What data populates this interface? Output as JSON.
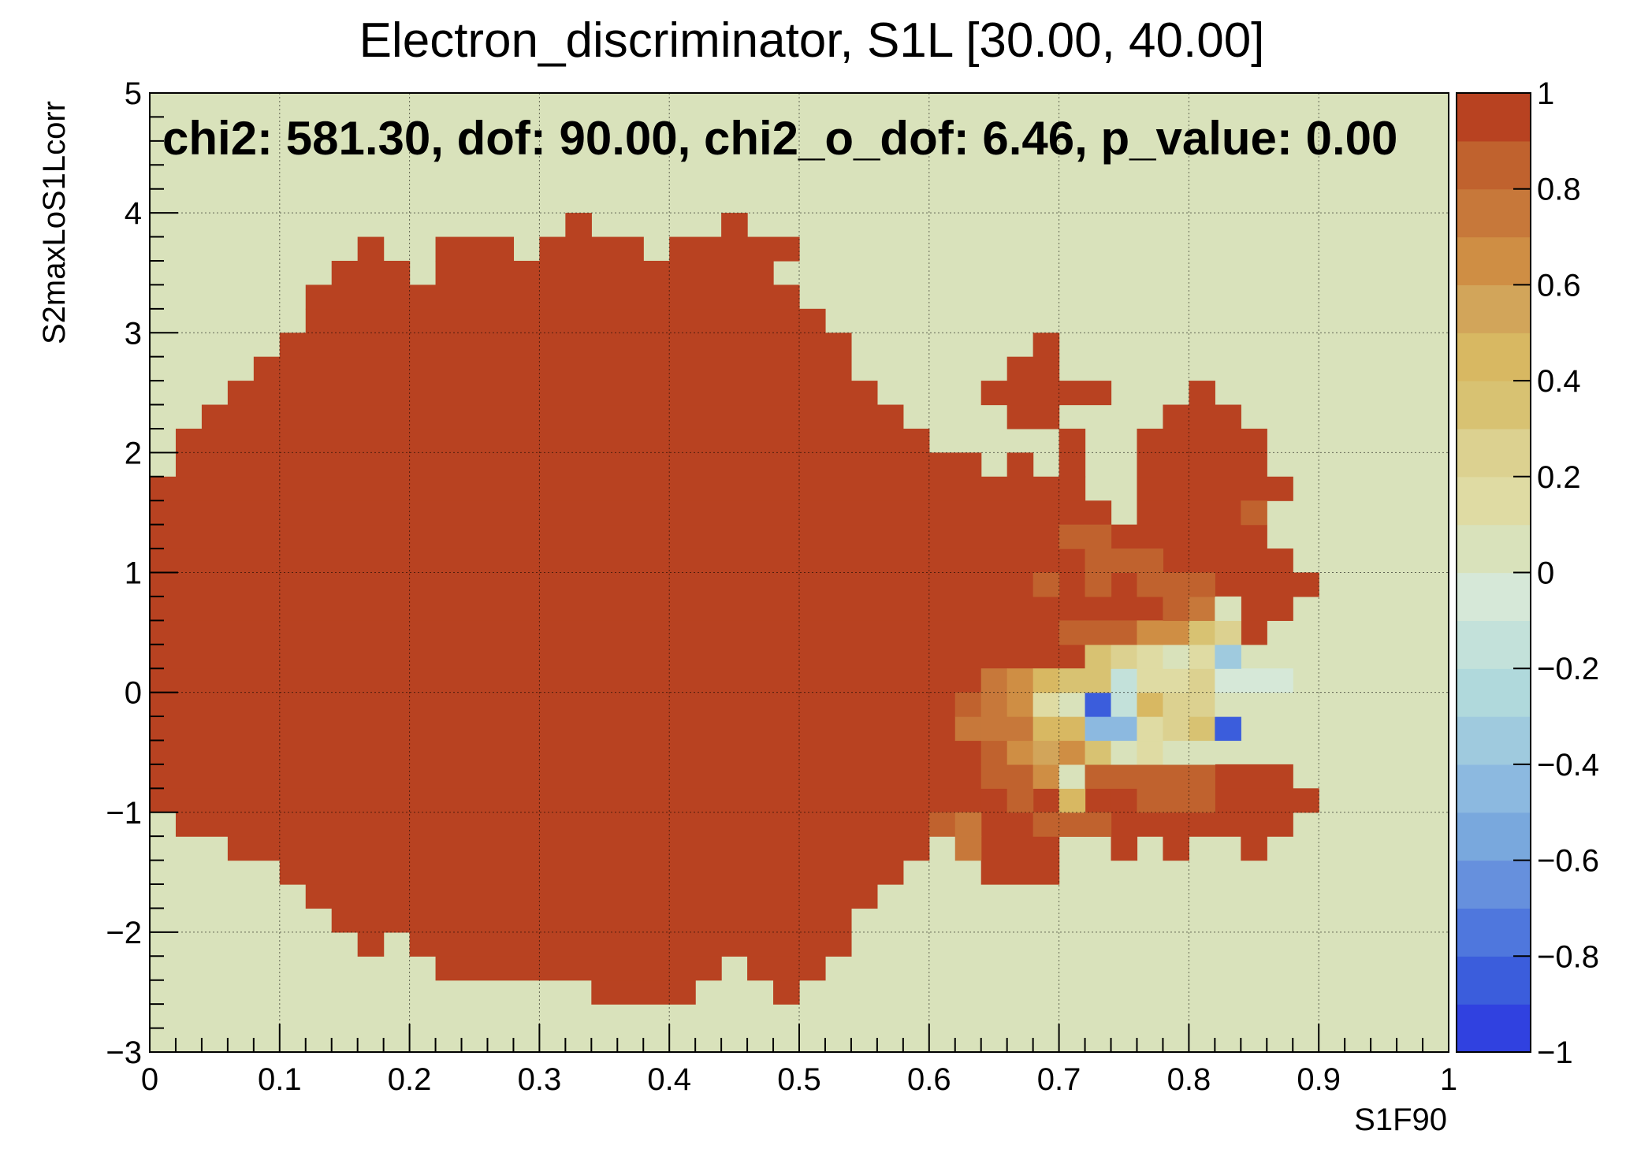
{
  "chart_data": {
    "type": "heatmap",
    "title": "Electron_discriminator, S1L [30.00, 40.00]",
    "xlabel": "S1F90",
    "ylabel": "S2maxLoS1Lcorr",
    "annotation": "chi2: 581.30, dof: 90.00, chi2_o_dof: 6.46, p_value: 0.00",
    "xlim": [
      0,
      1
    ],
    "ylim": [
      -3,
      5
    ],
    "zlim": [
      -1,
      1
    ],
    "x_bin_width": 0.02,
    "y_bin_width": 0.2,
    "background_value": 0.0,
    "grid": true,
    "x_ticks": [
      "0",
      "0.1",
      "0.2",
      "0.3",
      "0.4",
      "0.5",
      "0.6",
      "0.7",
      "0.8",
      "0.9",
      "1"
    ],
    "y_ticks": [
      "−3",
      "−2",
      "−1",
      "0",
      "1",
      "2",
      "3",
      "4",
      "5"
    ],
    "colorbar_ticks": [
      "−1",
      "−0.8",
      "−0.6",
      "−0.4",
      "−0.2",
      "0",
      "0.2",
      "0.4",
      "0.6",
      "0.8",
      "1"
    ],
    "colorbar_colors": [
      "#3041e0",
      "#3b5ddc",
      "#4f77dd",
      "#6690dd",
      "#79a8dd",
      "#8cb9e0",
      "#9fcade",
      "#b0d9dc",
      "#c3e1da",
      "#d6e8d8",
      "#d9e2bb",
      "#dfdba3",
      "#dcd190",
      "#d8c272",
      "#d8b862",
      "#d2a55a",
      "#cf8e44",
      "#c7783a",
      "#c0622e",
      "#b84221"
    ],
    "filled_value": 1.0,
    "filled_region": [
      {
        "y": -2.6,
        "x_ranges": [
          [
            0.34,
            0.42
          ],
          [
            0.48,
            0.5
          ]
        ]
      },
      {
        "y": -2.4,
        "x_ranges": [
          [
            0.22,
            0.44
          ],
          [
            0.46,
            0.52
          ]
        ]
      },
      {
        "y": -2.2,
        "x_ranges": [
          [
            0.16,
            0.18
          ],
          [
            0.2,
            0.54
          ]
        ]
      },
      {
        "y": -2.0,
        "x_ranges": [
          [
            0.14,
            0.54
          ]
        ]
      },
      {
        "y": -1.8,
        "x_ranges": [
          [
            0.12,
            0.56
          ]
        ]
      },
      {
        "y": -1.6,
        "x_ranges": [
          [
            0.1,
            0.58
          ],
          [
            0.64,
            0.7
          ]
        ]
      },
      {
        "y": -1.4,
        "x_ranges": [
          [
            0.06,
            0.6
          ],
          [
            0.64,
            0.7
          ],
          [
            0.74,
            0.76
          ],
          [
            0.78,
            0.8
          ],
          [
            0.84,
            0.86
          ]
        ]
      },
      {
        "y": -1.2,
        "x_ranges": [
          [
            0.02,
            0.6
          ],
          [
            0.64,
            0.88
          ]
        ]
      },
      {
        "y": -1.0,
        "x_ranges": [
          [
            0.0,
            0.9
          ]
        ]
      },
      {
        "y": -0.8,
        "x_ranges": [
          [
            0.0,
            0.64
          ],
          [
            0.82,
            0.88
          ]
        ]
      },
      {
        "y": -0.6,
        "x_ranges": [
          [
            0.0,
            0.64
          ]
        ]
      },
      {
        "y": -0.4,
        "x_ranges": [
          [
            0.0,
            0.64
          ]
        ]
      },
      {
        "y": -0.2,
        "x_ranges": [
          [
            0.0,
            0.66
          ]
        ]
      },
      {
        "y": 0.0,
        "x_ranges": [
          [
            0.0,
            0.72
          ]
        ]
      },
      {
        "y": 0.2,
        "x_ranges": [
          [
            0.0,
            0.8
          ]
        ]
      },
      {
        "y": 0.4,
        "x_ranges": [
          [
            0.0,
            0.86
          ]
        ]
      },
      {
        "y": 0.6,
        "x_ranges": [
          [
            0.0,
            0.88
          ]
        ]
      },
      {
        "y": 0.8,
        "x_ranges": [
          [
            0.0,
            0.9
          ]
        ]
      },
      {
        "y": 1.0,
        "x_ranges": [
          [
            0.0,
            0.88
          ]
        ]
      },
      {
        "y": 1.2,
        "x_ranges": [
          [
            0.0,
            0.72
          ],
          [
            0.74,
            0.86
          ]
        ]
      },
      {
        "y": 1.4,
        "x_ranges": [
          [
            0.0,
            0.74
          ],
          [
            0.76,
            0.84
          ]
        ]
      },
      {
        "y": 1.6,
        "x_ranges": [
          [
            0.0,
            0.72
          ],
          [
            0.76,
            0.88
          ]
        ]
      },
      {
        "y": 1.8,
        "x_ranges": [
          [
            0.02,
            0.64
          ],
          [
            0.66,
            0.68
          ],
          [
            0.7,
            0.72
          ],
          [
            0.76,
            0.86
          ]
        ]
      },
      {
        "y": 2.0,
        "x_ranges": [
          [
            0.02,
            0.6
          ],
          [
            0.7,
            0.72
          ],
          [
            0.76,
            0.86
          ]
        ]
      },
      {
        "y": 2.2,
        "x_ranges": [
          [
            0.04,
            0.58
          ],
          [
            0.66,
            0.7
          ],
          [
            0.78,
            0.84
          ]
        ]
      },
      {
        "y": 2.4,
        "x_ranges": [
          [
            0.06,
            0.56
          ],
          [
            0.64,
            0.74
          ],
          [
            0.8,
            0.82
          ]
        ]
      },
      {
        "y": 2.6,
        "x_ranges": [
          [
            0.08,
            0.54
          ],
          [
            0.66,
            0.7
          ]
        ]
      },
      {
        "y": 2.8,
        "x_ranges": [
          [
            0.1,
            0.54
          ],
          [
            0.68,
            0.7
          ]
        ]
      },
      {
        "y": 3.0,
        "x_ranges": [
          [
            0.12,
            0.52
          ]
        ]
      },
      {
        "y": 3.2,
        "x_ranges": [
          [
            0.12,
            0.5
          ]
        ]
      },
      {
        "y": 3.4,
        "x_ranges": [
          [
            0.14,
            0.2
          ],
          [
            0.22,
            0.48
          ]
        ]
      },
      {
        "y": 3.6,
        "x_ranges": [
          [
            0.16,
            0.18
          ],
          [
            0.22,
            0.28
          ],
          [
            0.3,
            0.38
          ],
          [
            0.4,
            0.5
          ]
        ]
      },
      {
        "y": 3.8,
        "x_ranges": [
          [
            0.32,
            0.34
          ],
          [
            0.44,
            0.46
          ]
        ]
      }
    ],
    "cells": [
      {
        "x": 0.6,
        "y": -1.2,
        "v": 0.8
      },
      {
        "x": 0.62,
        "y": -1.2,
        "v": 0.7
      },
      {
        "x": 0.62,
        "y": -1.4,
        "v": 0.7
      },
      {
        "x": 0.64,
        "y": -1.0,
        "v": 0.9
      },
      {
        "x": 0.66,
        "y": -1.0,
        "v": 0.8
      },
      {
        "x": 0.68,
        "y": -1.2,
        "v": 0.8
      },
      {
        "x": 0.7,
        "y": -1.2,
        "v": 0.8
      },
      {
        "x": 0.7,
        "y": -1.0,
        "v": 0.4
      },
      {
        "x": 0.72,
        "y": -1.2,
        "v": 0.8
      },
      {
        "x": 0.74,
        "y": -1.0,
        "v": 0.9
      },
      {
        "x": 0.76,
        "y": -1.0,
        "v": 0.85
      },
      {
        "x": 0.78,
        "y": -1.0,
        "v": 0.8
      },
      {
        "x": 0.8,
        "y": -1.0,
        "v": 0.85
      },
      {
        "x": 0.64,
        "y": -0.8,
        "v": 0.85
      },
      {
        "x": 0.66,
        "y": -0.8,
        "v": 0.8
      },
      {
        "x": 0.68,
        "y": -0.8,
        "v": 0.6
      },
      {
        "x": 0.7,
        "y": -0.8,
        "v": 0.02
      },
      {
        "x": 0.72,
        "y": -0.8,
        "v": 0.8
      },
      {
        "x": 0.74,
        "y": -0.8,
        "v": 0.8
      },
      {
        "x": 0.76,
        "y": -0.8,
        "v": 0.8
      },
      {
        "x": 0.78,
        "y": -0.8,
        "v": 0.8
      },
      {
        "x": 0.8,
        "y": -0.8,
        "v": 0.85
      },
      {
        "x": 0.64,
        "y": -0.6,
        "v": 0.8
      },
      {
        "x": 0.66,
        "y": -0.6,
        "v": 0.6
      },
      {
        "x": 0.68,
        "y": -0.6,
        "v": 0.5
      },
      {
        "x": 0.7,
        "y": -0.6,
        "v": 0.6
      },
      {
        "x": 0.72,
        "y": -0.6,
        "v": 0.3
      },
      {
        "x": 0.74,
        "y": -0.6,
        "v": 0.0
      },
      {
        "x": 0.76,
        "y": -0.6,
        "v": 0.15
      },
      {
        "x": 0.78,
        "y": -0.6,
        "v": 0.0
      },
      {
        "x": 0.8,
        "y": -0.6,
        "v": 0.0
      },
      {
        "x": 0.62,
        "y": -0.4,
        "v": 0.75
      },
      {
        "x": 0.64,
        "y": -0.4,
        "v": 0.7
      },
      {
        "x": 0.66,
        "y": -0.4,
        "v": 0.7
      },
      {
        "x": 0.68,
        "y": -0.4,
        "v": 0.4
      },
      {
        "x": 0.7,
        "y": -0.4,
        "v": 0.45
      },
      {
        "x": 0.72,
        "y": -0.4,
        "v": -0.45
      },
      {
        "x": 0.74,
        "y": -0.4,
        "v": -0.45
      },
      {
        "x": 0.76,
        "y": -0.4,
        "v": 0.1
      },
      {
        "x": 0.78,
        "y": -0.4,
        "v": 0.2
      },
      {
        "x": 0.8,
        "y": -0.4,
        "v": 0.3
      },
      {
        "x": 0.82,
        "y": -0.4,
        "v": -0.85
      },
      {
        "x": 0.62,
        "y": -0.2,
        "v": 0.8
      },
      {
        "x": 0.64,
        "y": -0.2,
        "v": 0.7
      },
      {
        "x": 0.66,
        "y": -0.2,
        "v": 0.6
      },
      {
        "x": 0.68,
        "y": -0.2,
        "v": 0.15
      },
      {
        "x": 0.7,
        "y": -0.2,
        "v": 0.05
      },
      {
        "x": 0.72,
        "y": -0.2,
        "v": -0.85
      },
      {
        "x": 0.74,
        "y": -0.2,
        "v": -0.15
      },
      {
        "x": 0.76,
        "y": -0.2,
        "v": 0.45
      },
      {
        "x": 0.78,
        "y": -0.2,
        "v": 0.25
      },
      {
        "x": 0.8,
        "y": -0.2,
        "v": 0.2
      },
      {
        "x": 0.82,
        "y": -0.2,
        "v": 0.05
      },
      {
        "x": 0.64,
        "y": 0.0,
        "v": 0.7
      },
      {
        "x": 0.66,
        "y": 0.0,
        "v": 0.6
      },
      {
        "x": 0.68,
        "y": 0.0,
        "v": 0.45
      },
      {
        "x": 0.7,
        "y": 0.0,
        "v": 0.3
      },
      {
        "x": 0.72,
        "y": 0.0,
        "v": 0.3
      },
      {
        "x": 0.74,
        "y": 0.0,
        "v": -0.15
      },
      {
        "x": 0.76,
        "y": 0.0,
        "v": 0.15
      },
      {
        "x": 0.78,
        "y": 0.0,
        "v": 0.15
      },
      {
        "x": 0.8,
        "y": 0.0,
        "v": 0.2
      },
      {
        "x": 0.82,
        "y": 0.0,
        "v": -0.1
      },
      {
        "x": 0.84,
        "y": 0.0,
        "v": -0.1
      },
      {
        "x": 0.86,
        "y": 0.0,
        "v": -0.1
      },
      {
        "x": 0.72,
        "y": 0.2,
        "v": 0.3
      },
      {
        "x": 0.74,
        "y": 0.2,
        "v": 0.2
      },
      {
        "x": 0.76,
        "y": 0.2,
        "v": 0.1
      },
      {
        "x": 0.78,
        "y": 0.2,
        "v": 0.05
      },
      {
        "x": 0.8,
        "y": 0.2,
        "v": 0.1
      },
      {
        "x": 0.82,
        "y": 0.2,
        "v": -0.4
      },
      {
        "x": 0.7,
        "y": 0.4,
        "v": 0.8
      },
      {
        "x": 0.72,
        "y": 0.4,
        "v": 0.85
      },
      {
        "x": 0.74,
        "y": 0.4,
        "v": 0.8
      },
      {
        "x": 0.76,
        "y": 0.4,
        "v": 0.6
      },
      {
        "x": 0.78,
        "y": 0.4,
        "v": 0.6
      },
      {
        "x": 0.8,
        "y": 0.4,
        "v": 0.3
      },
      {
        "x": 0.82,
        "y": 0.4,
        "v": 0.25
      },
      {
        "x": 0.78,
        "y": 0.6,
        "v": 0.8
      },
      {
        "x": 0.8,
        "y": 0.6,
        "v": 0.7
      },
      {
        "x": 0.82,
        "y": 0.6,
        "v": 0.05
      },
      {
        "x": 0.68,
        "y": 0.8,
        "v": 0.85
      },
      {
        "x": 0.72,
        "y": 0.8,
        "v": 0.85
      },
      {
        "x": 0.76,
        "y": 0.8,
        "v": 0.85
      },
      {
        "x": 0.78,
        "y": 0.8,
        "v": 0.8
      },
      {
        "x": 0.8,
        "y": 0.8,
        "v": 0.8
      },
      {
        "x": 0.72,
        "y": 1.0,
        "v": 0.85
      },
      {
        "x": 0.74,
        "y": 1.0,
        "v": 0.8
      },
      {
        "x": 0.76,
        "y": 1.0,
        "v": 0.85
      },
      {
        "x": 0.72,
        "y": 1.2,
        "v": 0.85
      },
      {
        "x": 0.7,
        "y": 1.2,
        "v": 0.8
      },
      {
        "x": 0.84,
        "y": 1.4,
        "v": 0.8
      }
    ]
  }
}
